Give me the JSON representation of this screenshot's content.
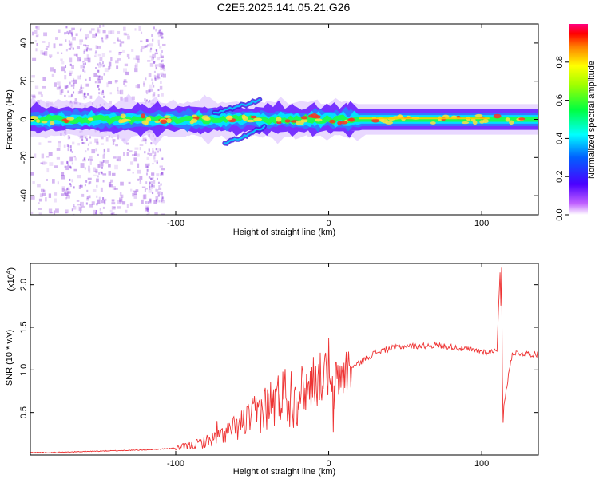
{
  "figure": {
    "title": "C2E5.2025.141.05.21.G26"
  },
  "chart_data": [
    {
      "type": "heatmap",
      "name": "spectrogram",
      "xlabel": "Height of straight line (km)",
      "ylabel": "Frequency (Hz)",
      "xlim": [
        -195,
        137
      ],
      "ylim": [
        -50,
        50
      ],
      "xticks": [
        -100,
        0,
        100
      ],
      "xtick_labels": [
        "-100",
        "0",
        "100"
      ],
      "yticks": [
        -40,
        -20,
        0,
        20,
        40
      ],
      "ytick_labels": [
        "-40",
        "-20",
        "0",
        "20",
        "40"
      ],
      "colorbar": {
        "label": "Normalized spectral amplitude",
        "range": [
          0,
          1
        ],
        "ticks": [
          0.0,
          0.2,
          0.4,
          0.6,
          0.8
        ],
        "tick_labels": [
          "0.0",
          "0.2",
          "0.4",
          "0.6",
          "0.8"
        ],
        "colormap": "rainbow (violet-blue-cyan-green-yellow-red)"
      },
      "features": [
        {
          "description": "main band centred near 0 Hz across full range",
          "x": [
            -195,
            137
          ],
          "y_center": 0,
          "width_hz": 8
        },
        {
          "description": "upward branch",
          "x": [
            -75,
            -45
          ],
          "y_start": 3,
          "y_end": 10
        },
        {
          "description": "downward branch",
          "x": [
            -68,
            -42
          ],
          "y_start": -13,
          "y_end": -4
        }
      ],
      "grid": false
    },
    {
      "type": "line",
      "name": "snr",
      "xlabel": "Height of straight line (km)",
      "ylabel": "SNR (10 * v/v)",
      "y_scale_label": "(x10",
      "y_scale_exp": "4",
      "xlim": [
        -195,
        137
      ],
      "ylim": [
        0,
        2.25
      ],
      "xticks": [
        -100,
        0,
        100
      ],
      "xtick_labels": [
        "-100",
        "0",
        "100"
      ],
      "yticks": [
        0.5,
        1.0,
        1.5,
        2.0
      ],
      "ytick_labels": [
        "0.5",
        "1.0",
        "1.5",
        "2.0"
      ],
      "color": "#ee3333",
      "series": [
        {
          "x": [
            -195,
            -180,
            -160,
            -140,
            -120,
            -100,
            -90,
            -80,
            -70,
            -60,
            -50,
            -40,
            -30,
            -20,
            -10,
            -5,
            0,
            2,
            5,
            10,
            20,
            30,
            40,
            50,
            60,
            70,
            80,
            90,
            100,
            105,
            110,
            112,
            114,
            120,
            130,
            137
          ],
          "y": [
            0.03,
            0.03,
            0.04,
            0.05,
            0.06,
            0.08,
            0.11,
            0.16,
            0.23,
            0.33,
            0.45,
            0.58,
            0.68,
            0.75,
            0.82,
            0.92,
            0.95,
            0.65,
            0.85,
            0.97,
            1.08,
            1.2,
            1.25,
            1.28,
            1.28,
            1.29,
            1.27,
            1.24,
            1.22,
            1.2,
            1.25,
            2.15,
            0.55,
            1.2,
            1.19,
            1.18
          ],
          "spikes": [
            {
              "x": 0,
              "y": 1.37
            },
            {
              "x": -10,
              "y": 1.15
            },
            {
              "x": -30,
              "y": 0.98
            },
            {
              "x": -45,
              "y": 0.65
            },
            {
              "x": -60,
              "y": 0.42
            },
            {
              "x": -73,
              "y": 0.4
            },
            {
              "x": 3,
              "y": 0.27
            },
            {
              "x": 113,
              "y": 2.2
            },
            {
              "x": 114,
              "y": 0.38
            }
          ]
        }
      ],
      "grid": false
    }
  ]
}
